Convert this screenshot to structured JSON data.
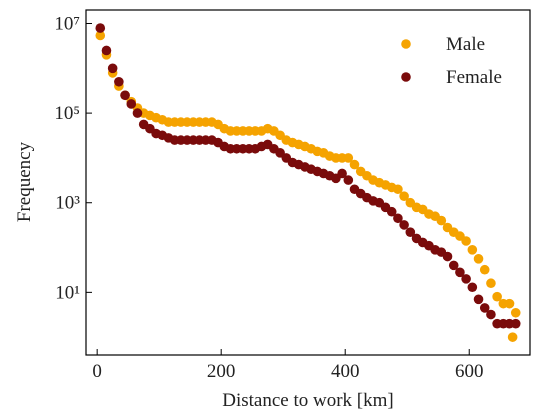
{
  "chart_data": {
    "type": "scatter",
    "xlabel": "Distance to work [km]",
    "ylabel": "Frequency",
    "xlim": [
      -18,
      698
    ],
    "ylim": [
      0.4,
      20000000
    ],
    "ylog": true,
    "xticks": [
      0,
      200,
      400,
      600
    ],
    "yticks": [
      {
        "value": 10,
        "label": "10¹"
      },
      {
        "value": 1000,
        "label": "10³"
      },
      {
        "value": 100000,
        "label": "10⁵"
      },
      {
        "value": 10000000,
        "label": "10⁷"
      }
    ],
    "legend": "upper right",
    "series": [
      {
        "name": "Male",
        "color": "#f5a300",
        "x": [
          5,
          15,
          25,
          35,
          45,
          55,
          65,
          75,
          85,
          95,
          105,
          115,
          125,
          135,
          145,
          155,
          165,
          175,
          185,
          195,
          205,
          215,
          225,
          235,
          245,
          255,
          265,
          275,
          285,
          295,
          305,
          315,
          325,
          335,
          345,
          355,
          365,
          375,
          385,
          395,
          405,
          415,
          425,
          435,
          445,
          455,
          465,
          475,
          485,
          495,
          505,
          515,
          525,
          535,
          545,
          555,
          565,
          575,
          585,
          595,
          605,
          615,
          625,
          635,
          645,
          655,
          665,
          670,
          675
        ],
        "values": [
          5400000,
          2000000,
          790000,
          400000,
          250000,
          180000,
          130000,
          100000,
          89000,
          79000,
          71000,
          63000,
          63000,
          63000,
          63000,
          63000,
          63000,
          63000,
          63000,
          56000,
          45000,
          40000,
          40000,
          40000,
          40000,
          40000,
          40000,
          45000,
          40000,
          32000,
          25000,
          22000,
          20000,
          18000,
          16000,
          14000,
          13000,
          11000,
          10000,
          10000,
          10000,
          7100,
          5000,
          4000,
          3200,
          2800,
          2500,
          2200,
          2000,
          1400,
          1000,
          790,
          710,
          560,
          500,
          400,
          280,
          220,
          180,
          140,
          89,
          56,
          32,
          16,
          8,
          5.6,
          5.6,
          1,
          3.5
        ]
      },
      {
        "name": "Female",
        "color": "#7a0b0b",
        "x": [
          5,
          15,
          25,
          35,
          45,
          55,
          65,
          75,
          85,
          95,
          105,
          115,
          125,
          135,
          145,
          155,
          165,
          175,
          185,
          195,
          205,
          215,
          225,
          235,
          245,
          255,
          265,
          275,
          285,
          295,
          305,
          315,
          325,
          335,
          345,
          355,
          365,
          375,
          385,
          395,
          405,
          415,
          425,
          435,
          445,
          455,
          465,
          475,
          485,
          495,
          505,
          515,
          525,
          535,
          545,
          555,
          565,
          575,
          585,
          595,
          605,
          615,
          625,
          635,
          645,
          655,
          665,
          675
        ],
        "values": [
          7900000,
          2500000,
          1000000,
          500000,
          250000,
          160000,
          100000,
          56000,
          45000,
          35000,
          32000,
          28000,
          25000,
          25000,
          25000,
          25000,
          25000,
          25000,
          25000,
          22000,
          18000,
          16000,
          16000,
          16000,
          16000,
          16000,
          18000,
          20000,
          16000,
          13000,
          10000,
          7900,
          7100,
          6300,
          5600,
          5000,
          4500,
          4000,
          3500,
          4500,
          3200,
          2000,
          1600,
          1300,
          1100,
          1000,
          790,
          630,
          450,
          320,
          220,
          160,
          130,
          110,
          89,
          79,
          63,
          40,
          28,
          20,
          13,
          7,
          4.5,
          3.2,
          2,
          2,
          2,
          2
        ]
      }
    ]
  }
}
